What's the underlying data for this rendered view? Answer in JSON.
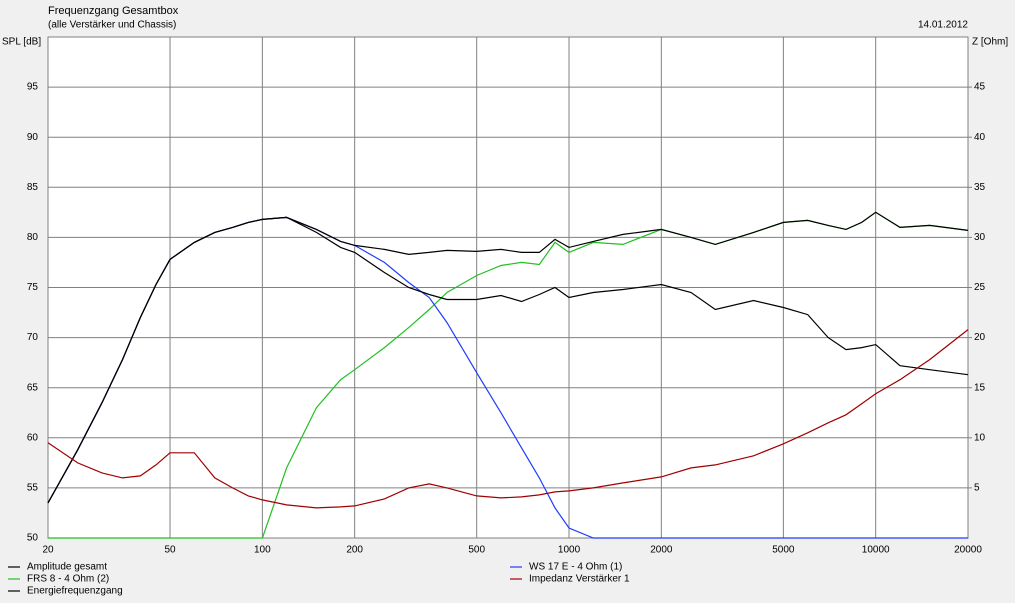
{
  "chart_data": {
    "type": "line",
    "title": "Frequenzgang Gesamtbox",
    "subtitle": "(alle Verstärker und Chassis)",
    "date": "14.01.2012",
    "y_label": "SPL [dB]",
    "y2_label": "Z [Ohm]",
    "x_scale": "log",
    "grid": true,
    "legend": "bottom",
    "x": [
      20,
      25,
      30,
      35,
      40,
      45,
      50,
      60,
      70,
      80,
      90,
      100,
      120,
      150,
      180,
      200,
      250,
      300,
      350,
      400,
      500,
      600,
      700,
      800,
      900,
      1000,
      1200,
      1500,
      2000,
      2500,
      3000,
      4000,
      5000,
      6000,
      7000,
      8000,
      9000,
      10000,
      12000,
      15000,
      20000
    ],
    "xlim": [
      20,
      20000
    ],
    "xticks": [
      20,
      50,
      100,
      200,
      500,
      1000,
      2000,
      5000,
      10000,
      20000
    ],
    "ylim": [
      50,
      100
    ],
    "yticks": [
      50,
      55,
      60,
      65,
      70,
      75,
      80,
      85,
      90,
      95
    ],
    "y2lim": [
      0,
      50
    ],
    "y2ticks": [
      5,
      10,
      15,
      20,
      25,
      30,
      35,
      40,
      45
    ],
    "series": [
      {
        "name": "Amplitude gesamt",
        "color": "#000000",
        "values": [
          53.5,
          58.8,
          63.5,
          67.8,
          72,
          75.3,
          77.8,
          79.5,
          80.5,
          81,
          81.5,
          81.8,
          82,
          80.8,
          79.6,
          79.2,
          78.8,
          78.3,
          78.5,
          78.7,
          78.6,
          78.8,
          78.5,
          78.5,
          79.8,
          79,
          79.6,
          80.3,
          80.8,
          80,
          79.3,
          80.5,
          81.5,
          81.7,
          81.2,
          80.8,
          81.5,
          82.5,
          81,
          81.2,
          80.7
        ]
      },
      {
        "name": "FRS 8 - 4 Ohm (2)",
        "color": "#22c022",
        "values": [
          50,
          50,
          50,
          50,
          50,
          50,
          50,
          50,
          50,
          50,
          50,
          50,
          57,
          63,
          65.8,
          66.8,
          69,
          71,
          72.8,
          74.5,
          76.2,
          77.2,
          77.5,
          77.3,
          79.5,
          78.5,
          79.5,
          79.3,
          80.8,
          80,
          79.3,
          80.5,
          81.5,
          81.7,
          81.2,
          80.8,
          81.5,
          82.5,
          81,
          81.2,
          80.7
        ]
      },
      {
        "name": "Energiefrequenzgang",
        "color": "#000000",
        "values": [
          53.5,
          58.8,
          63.5,
          67.8,
          72,
          75.3,
          77.8,
          79.5,
          80.5,
          81,
          81.5,
          81.8,
          82,
          80.5,
          79,
          78.5,
          76.5,
          75,
          74.3,
          73.8,
          73.8,
          74.2,
          73.6,
          74.3,
          75,
          74,
          74.5,
          74.8,
          75.3,
          74.5,
          72.8,
          73.7,
          73,
          72.3,
          70,
          68.8,
          69,
          69.3,
          67.2,
          66.8,
          66.3
        ]
      },
      {
        "name": "WS 17 E - 4 Ohm  (1)",
        "color": "#1f3cff",
        "values": [
          53.5,
          58.8,
          63.5,
          67.8,
          72,
          75.3,
          77.8,
          79.5,
          80.5,
          81,
          81.5,
          81.8,
          82,
          80.8,
          79.6,
          79.2,
          77.5,
          75.5,
          74,
          71.5,
          66.5,
          62.5,
          59,
          56,
          53,
          51,
          50,
          50,
          50,
          50,
          50,
          50,
          50,
          50,
          50,
          50,
          50,
          50,
          50,
          50,
          50
        ]
      },
      {
        "name": "Impedanz Verstärker 1",
        "color": "#a00000",
        "axis": "y2",
        "values": [
          9.5,
          7.5,
          6.5,
          6,
          6.2,
          7.3,
          8.5,
          8.5,
          6,
          5,
          4.2,
          3.8,
          3.3,
          3,
          3.1,
          3.2,
          3.9,
          5,
          5.4,
          5,
          4.2,
          4,
          4.1,
          4.3,
          4.6,
          4.7,
          5,
          5.5,
          6.1,
          7,
          7.3,
          8.2,
          9.4,
          10.5,
          11.5,
          12.3,
          13.4,
          14.4,
          15.8,
          17.8,
          20.8
        ]
      }
    ]
  }
}
